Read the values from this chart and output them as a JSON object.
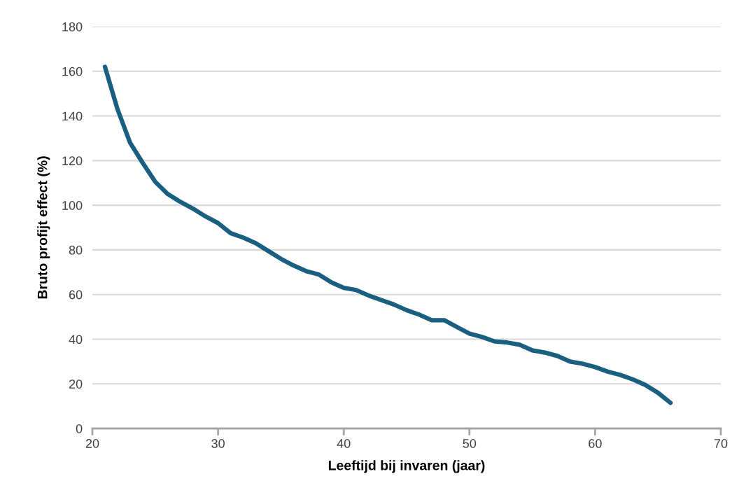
{
  "chart_data": {
    "type": "line",
    "xlabel": "Leeftijd bij invaren (jaar)",
    "ylabel": "Bruto profijt effect (%)",
    "x": [
      21,
      22,
      23,
      24,
      25,
      26,
      27,
      28,
      29,
      30,
      31,
      32,
      33,
      34,
      35,
      36,
      37,
      38,
      39,
      40,
      41,
      42,
      43,
      44,
      45,
      46,
      47,
      48,
      49,
      50,
      51,
      52,
      53,
      54,
      55,
      56,
      57,
      58,
      59,
      60,
      61,
      62,
      63,
      64,
      65,
      66
    ],
    "series": [
      {
        "color": "#1a5e80",
        "values": [
          162,
          143,
          128,
          119,
          110.5,
          105,
          101.5,
          98.5,
          95,
          92,
          87.5,
          85.5,
          83,
          79.5,
          76,
          73,
          70.5,
          69,
          65.5,
          63,
          62,
          59.5,
          57.5,
          55.5,
          53,
          51,
          48.5,
          48.5,
          45.5,
          42.5,
          41,
          39,
          38.5,
          37.5,
          35,
          34,
          32.5,
          30,
          29,
          27.5,
          25.5,
          24,
          22,
          19.5,
          16,
          11.5
        ]
      }
    ],
    "xlim": [
      20,
      70
    ],
    "xticks": [
      20,
      30,
      40,
      50,
      60,
      70
    ],
    "ylim": [
      0,
      180
    ],
    "yticks": [
      0,
      20,
      40,
      60,
      80,
      100,
      120,
      140,
      160,
      180
    ],
    "grid": "y",
    "legend": false,
    "marker": "none",
    "line_style": "solid"
  }
}
